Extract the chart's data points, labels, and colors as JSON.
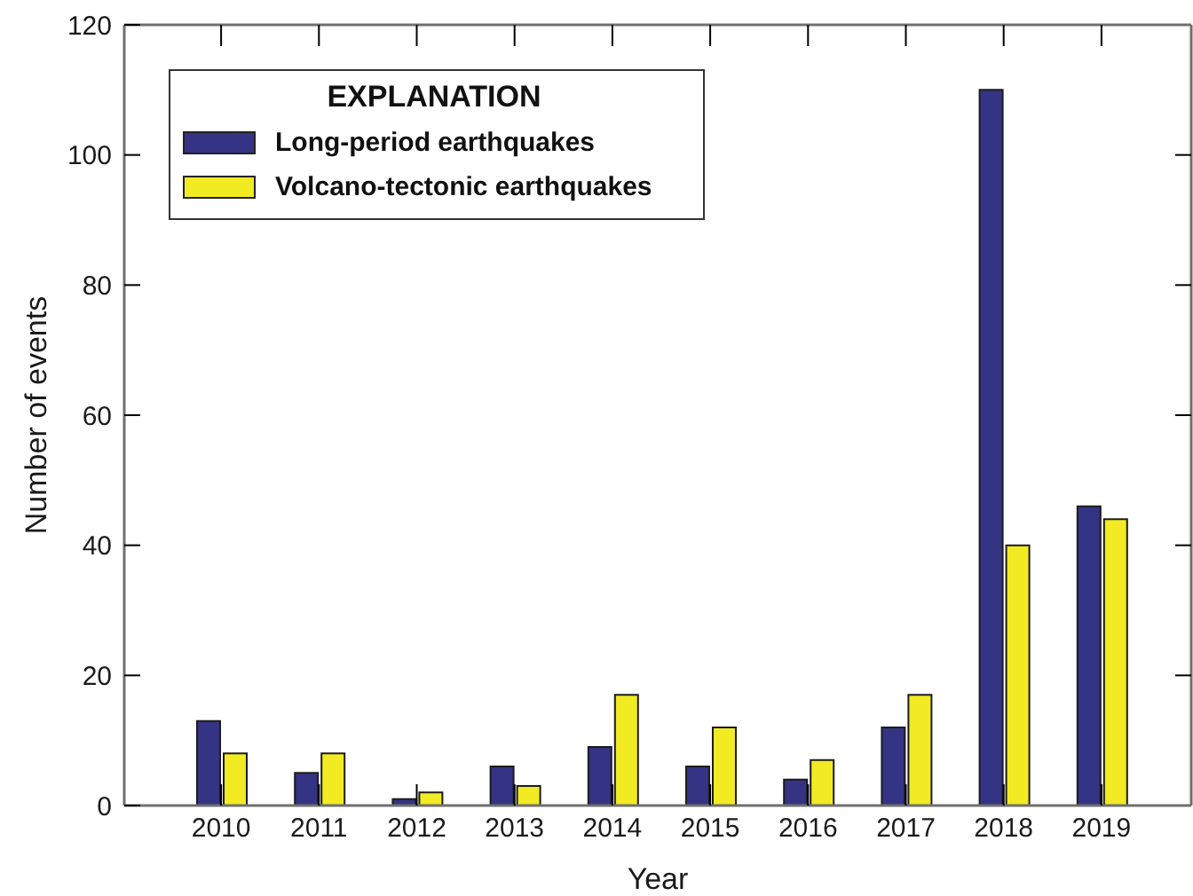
{
  "chart_data": {
    "type": "bar",
    "xlabel": "Year",
    "ylabel": "Number of events",
    "legend_title": "EXPLANATION",
    "categories": [
      "2010",
      "2011",
      "2012",
      "2013",
      "2014",
      "2015",
      "2016",
      "2017",
      "2018",
      "2019"
    ],
    "series": [
      {
        "name": "Long-period earthquakes",
        "color": "#353383",
        "values": [
          13,
          5,
          1,
          6,
          9,
          6,
          4,
          12,
          110,
          46
        ]
      },
      {
        "name": "Volcano-tectonic earthquakes",
        "color": "#f2ea23",
        "values": [
          8,
          8,
          2,
          3,
          17,
          12,
          7,
          17,
          40,
          44
        ]
      }
    ],
    "ylim": [
      0,
      120
    ],
    "yticks": [
      0,
      20,
      40,
      60,
      80,
      100,
      120
    ],
    "legend": "top left"
  }
}
